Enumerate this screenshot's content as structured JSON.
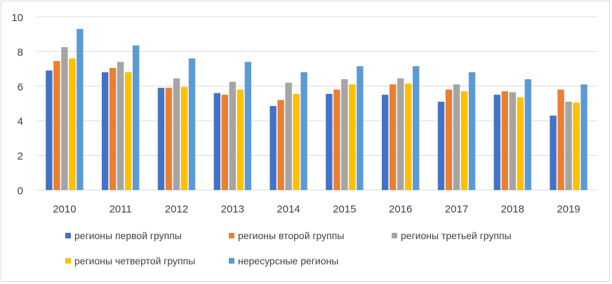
{
  "chart_data": {
    "type": "bar",
    "categories": [
      "2010",
      "2011",
      "2012",
      "2013",
      "2014",
      "2015",
      "2016",
      "2017",
      "2018",
      "2019"
    ],
    "series": [
      {
        "name": "регионы первой группы",
        "color": "#4472c4",
        "values": [
          6.9,
          6.8,
          5.9,
          5.6,
          4.85,
          5.55,
          5.5,
          5.1,
          5.5,
          4.3
        ]
      },
      {
        "name": "регионы второй группы",
        "color": "#ed7d31",
        "values": [
          7.45,
          7.05,
          5.9,
          5.5,
          5.2,
          5.8,
          6.1,
          5.8,
          5.7,
          5.8
        ]
      },
      {
        "name": "регионы третьей группы",
        "color": "#a5a5a5",
        "values": [
          8.25,
          7.4,
          6.45,
          6.25,
          6.2,
          6.4,
          6.45,
          6.1,
          5.65,
          5.1
        ]
      },
      {
        "name": "регионы четвертой группы",
        "color": "#ffc000",
        "values": [
          7.6,
          6.8,
          5.95,
          5.8,
          5.55,
          6.1,
          6.15,
          5.7,
          5.35,
          5.05
        ]
      },
      {
        "name": "нересурсные регионы",
        "color": "#5b9bd5",
        "values": [
          9.3,
          8.35,
          7.6,
          7.4,
          6.8,
          7.15,
          7.15,
          6.8,
          6.4,
          6.1
        ]
      }
    ],
    "y_ticks": [
      "0",
      "2",
      "4",
      "6",
      "8",
      "10"
    ],
    "ylim": [
      0,
      10
    ],
    "grid": true,
    "legend_position": "bottom"
  }
}
